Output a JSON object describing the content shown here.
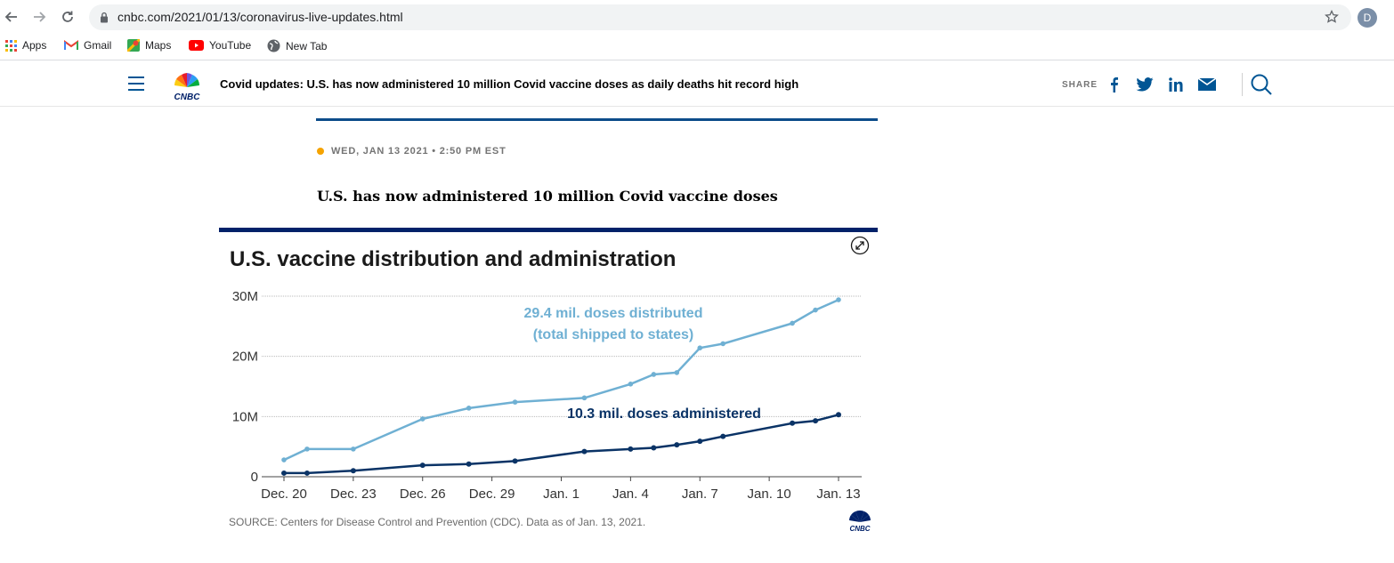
{
  "browser": {
    "url": "cnbc.com/2021/01/13/coronavirus-live-updates.html",
    "profile_initial": "D",
    "bookmarks": [
      {
        "label": "Apps",
        "icon": "apps-grid-icon"
      },
      {
        "label": "Gmail",
        "icon": "gmail-icon"
      },
      {
        "label": "Maps",
        "icon": "maps-icon"
      },
      {
        "label": "YouTube",
        "icon": "youtube-icon"
      },
      {
        "label": "New Tab",
        "icon": "globe-icon"
      }
    ]
  },
  "header": {
    "headline": "Covid updates: U.S. has now administered 10 million Covid vaccine doses as daily deaths hit record high",
    "share_label": "SHARE",
    "brand_color": "#005594"
  },
  "article": {
    "timestamp": "WED, JAN 13 2021 • 2:50 PM EST",
    "title": "U.S. has now administered 10 million Covid vaccine doses",
    "dot_color": "#f5a300"
  },
  "chart": {
    "title": "U.S. vaccine distribution and administration",
    "source": "SOURCE: Centers for Disease Control and Prevention (CDC). Data as of Jan. 13, 2021."
  },
  "chart_data": {
    "type": "line",
    "title": "U.S. vaccine distribution and administration",
    "xlabel": "",
    "ylabel": "",
    "ylim": [
      0,
      30
    ],
    "y_unit": "millions of doses",
    "y_ticks": [
      "0",
      "10M",
      "20M",
      "30M"
    ],
    "y_tick_values": [
      0,
      10,
      20,
      30
    ],
    "x_ticks": [
      "Dec. 20",
      "Dec. 23",
      "Dec. 26",
      "Dec. 29",
      "Jan. 1",
      "Jan. 4",
      "Jan. 7",
      "Jan. 10",
      "Jan. 13"
    ],
    "x_tick_dates": [
      "2020-12-20",
      "2020-12-23",
      "2020-12-26",
      "2020-12-29",
      "2021-01-01",
      "2021-01-04",
      "2021-01-07",
      "2021-01-10",
      "2021-01-13"
    ],
    "grid": true,
    "series": [
      {
        "name": "29.4 mil. doses distributed",
        "subtitle": "(total shipped to states)",
        "color": "#6fb0d3",
        "points": [
          {
            "x": "2020-12-20",
            "y": 2.8
          },
          {
            "x": "2020-12-21",
            "y": 4.6
          },
          {
            "x": "2020-12-23",
            "y": 4.6
          },
          {
            "x": "2020-12-26",
            "y": 9.6
          },
          {
            "x": "2020-12-28",
            "y": 11.4
          },
          {
            "x": "2020-12-30",
            "y": 12.4
          },
          {
            "x": "2021-01-02",
            "y": 13.1
          },
          {
            "x": "2021-01-04",
            "y": 15.4
          },
          {
            "x": "2021-01-05",
            "y": 17.0
          },
          {
            "x": "2021-01-06",
            "y": 17.3
          },
          {
            "x": "2021-01-07",
            "y": 21.4
          },
          {
            "x": "2021-01-08",
            "y": 22.1
          },
          {
            "x": "2021-01-11",
            "y": 25.5
          },
          {
            "x": "2021-01-12",
            "y": 27.7
          },
          {
            "x": "2021-01-13",
            "y": 29.4
          }
        ]
      },
      {
        "name": "10.3 mil. doses administered",
        "color": "#0a3366",
        "points": [
          {
            "x": "2020-12-20",
            "y": 0.6
          },
          {
            "x": "2020-12-21",
            "y": 0.6
          },
          {
            "x": "2020-12-23",
            "y": 1.0
          },
          {
            "x": "2020-12-26",
            "y": 1.9
          },
          {
            "x": "2020-12-28",
            "y": 2.1
          },
          {
            "x": "2020-12-30",
            "y": 2.6
          },
          {
            "x": "2021-01-02",
            "y": 4.2
          },
          {
            "x": "2021-01-04",
            "y": 4.6
          },
          {
            "x": "2021-01-05",
            "y": 4.8
          },
          {
            "x": "2021-01-06",
            "y": 5.3
          },
          {
            "x": "2021-01-07",
            "y": 5.9
          },
          {
            "x": "2021-01-08",
            "y": 6.7
          },
          {
            "x": "2021-01-11",
            "y": 8.9
          },
          {
            "x": "2021-01-12",
            "y": 9.3
          },
          {
            "x": "2021-01-13",
            "y": 10.3
          }
        ]
      }
    ]
  }
}
